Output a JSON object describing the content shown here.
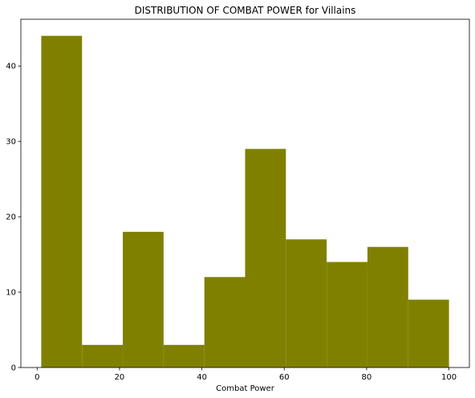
{
  "chart_data": {
    "type": "bar",
    "subtype": "histogram",
    "title": "DISTRIBUTION OF COMBAT POWER for Villains",
    "xlabel": "Combat Power",
    "ylabel": "",
    "bin_edges": [
      1,
      10.9,
      20.8,
      30.7,
      40.6,
      50.5,
      60.4,
      70.3,
      80.2,
      90.1,
      100
    ],
    "values": [
      44,
      3,
      18,
      3,
      12,
      29,
      17,
      14,
      16,
      9
    ],
    "xlim": [
      -3.95,
      104.95
    ],
    "ylim": [
      0,
      46.2
    ],
    "xticks": [
      0,
      20,
      40,
      60,
      80,
      100
    ],
    "yticks": [
      0,
      10,
      20,
      30,
      40
    ],
    "grid": false,
    "legend": "none",
    "colors": {
      "bar": "#808000",
      "axis": "#000000",
      "background": "#ffffff"
    }
  }
}
